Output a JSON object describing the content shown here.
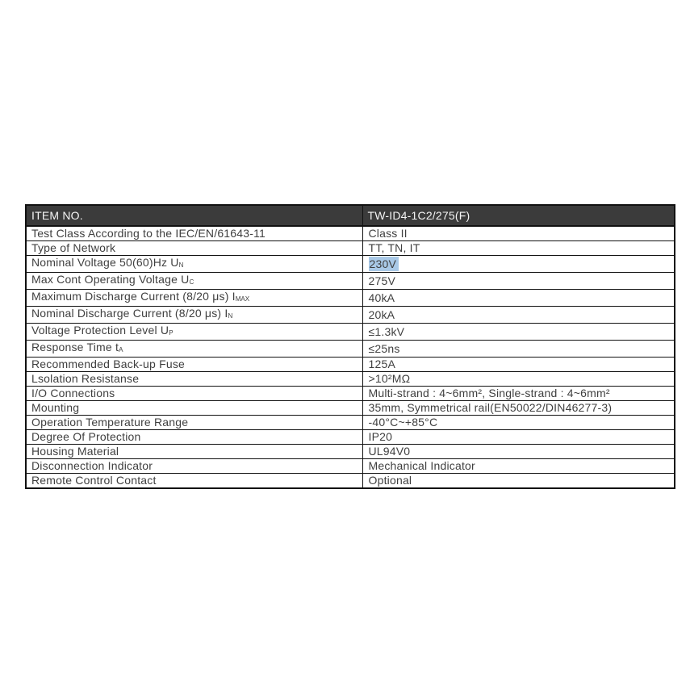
{
  "page": {
    "background": "#ffffff"
  },
  "table": {
    "header": {
      "item_label": "ITEM NO.",
      "item_value": "TW-ID4-1C2/275(F)"
    },
    "colors": {
      "header_bg": "#3b3b3b",
      "header_text": "#f5f5f5",
      "body_text": "#3f3f3f",
      "border": "#111111",
      "highlight_bg": "#a9c9e7"
    },
    "rows": [
      {
        "label": "Test Class According to the IEC/EN/61643-11",
        "sub": "",
        "value": "Class II",
        "highlight": false
      },
      {
        "label": "Type of Network",
        "sub": "",
        "value": "TT, TN, IT",
        "highlight": false
      },
      {
        "label": "Nominal Voltage 50(60)Hz U",
        "sub": "N",
        "value": "230V",
        "highlight": true
      },
      {
        "label": "Max Cont Operating Voltage U",
        "sub": "C",
        "value": "275V",
        "highlight": false
      },
      {
        "label": "Maximum Discharge Current (8/20 μs) I",
        "sub": "MAX",
        "value": "40kA",
        "highlight": false
      },
      {
        "label": "Nominal Discharge Current (8/20 μs) I",
        "sub": "N",
        "value": "20kA",
        "highlight": false
      },
      {
        "label": "Voltage Protection Level U",
        "sub": "P",
        "value": "≤1.3kV",
        "highlight": false
      },
      {
        "label": "Response Time t",
        "sub": "A",
        "value": "≤25ns",
        "highlight": false
      },
      {
        "label": "Recommended Back-up Fuse",
        "sub": "",
        "value": "125A",
        "highlight": false
      },
      {
        "label": "Lsolation Resistanse",
        "sub": "",
        "value": ">10²MΩ",
        "highlight": false
      },
      {
        "label": "I/O Connections",
        "sub": "",
        "value": "Multi-strand : 4~6mm², Single-strand : 4~6mm²",
        "highlight": false
      },
      {
        "label": "Mounting",
        "sub": "",
        "value": "35mm, Symmetrical rail(EN50022/DIN46277-3)",
        "highlight": false
      },
      {
        "label": "Operation Temperature Range",
        "sub": "",
        "value": "-40°C~+85°C",
        "highlight": false
      },
      {
        "label": "Degree Of Protection",
        "sub": "",
        "value": "IP20",
        "highlight": false
      },
      {
        "label": "Housing Material",
        "sub": "",
        "value": "UL94V0",
        "highlight": false
      },
      {
        "label": "Disconnection Indicator",
        "sub": "",
        "value": "Mechanical Indicator",
        "highlight": false
      },
      {
        "label": "Remote Control Contact",
        "sub": "",
        "value": "Optional",
        "highlight": false
      }
    ]
  }
}
